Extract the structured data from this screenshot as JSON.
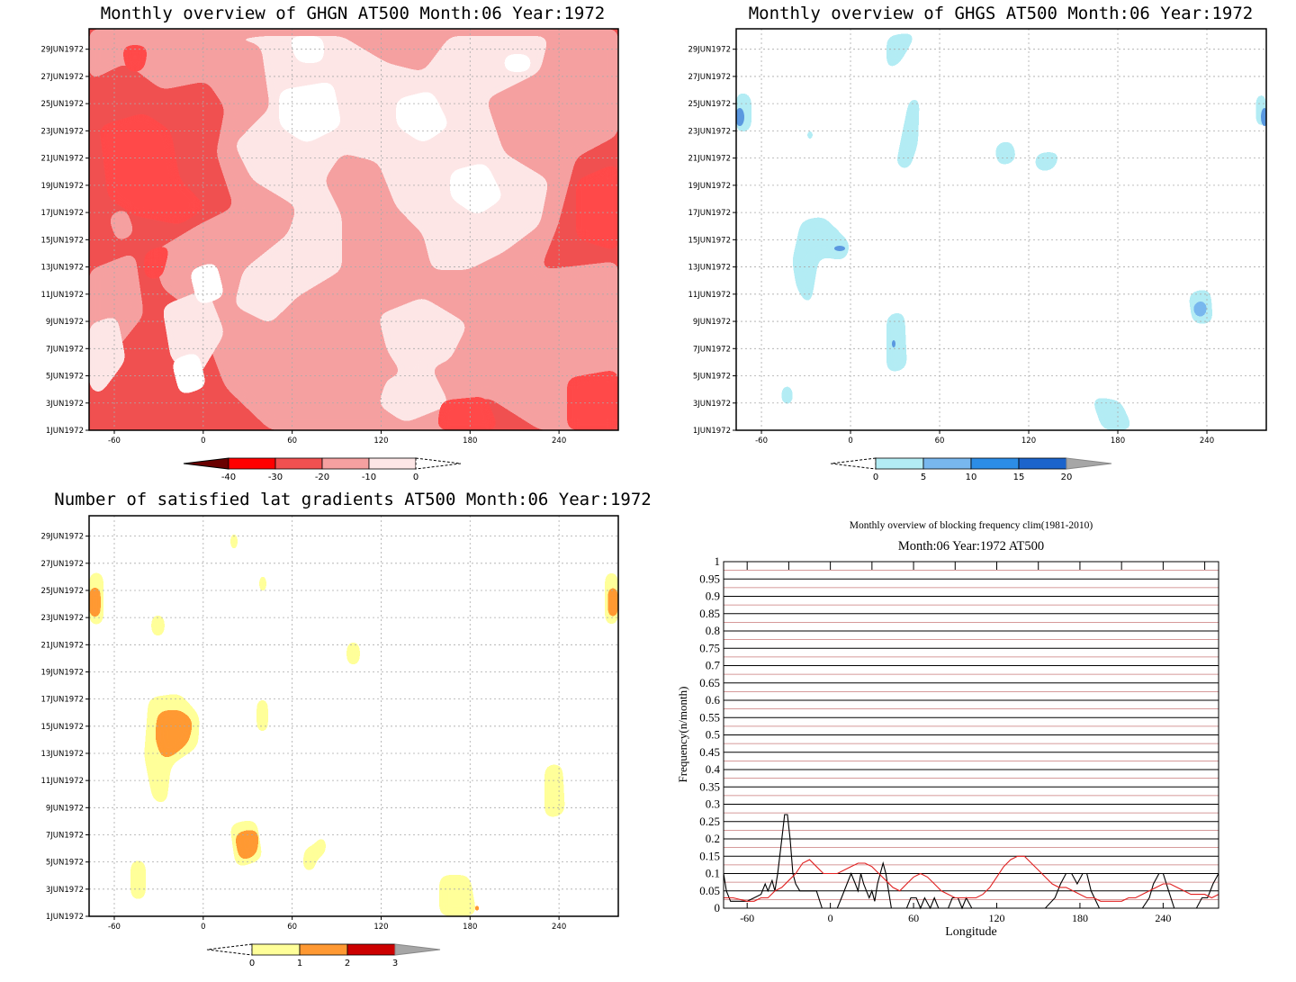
{
  "colors": {
    "ghgn_bins": [
      "#6a0000",
      "#ff0000",
      "#f05050",
      "#f5a0a0",
      "#fde6e6",
      "#ffffff"
    ],
    "ghgs_bins": [
      "#ffffff",
      "#b3ecf4",
      "#78b7ee",
      "#2c8de6",
      "#1c64cc",
      "#a6a6a6"
    ],
    "count_bins": [
      "#ffffff",
      "#ffff99",
      "#ff9933",
      "#cc0000",
      "#a6a6a6"
    ],
    "freq_black": "#000000",
    "freq_red": "#e02020"
  },
  "date_ticks": [
    "1JUN1972",
    "3JUN1972",
    "5JUN1972",
    "7JUN1972",
    "9JUN1972",
    "11JUN1972",
    "13JUN1972",
    "15JUN1972",
    "17JUN1972",
    "19JUN1972",
    "21JUN1972",
    "23JUN1972",
    "25JUN1972",
    "27JUN1972",
    "29JUN1972"
  ],
  "lon_ticks": [
    "-60",
    "0",
    "60",
    "120",
    "180",
    "240"
  ],
  "chart_data": [
    {
      "type": "heatmap",
      "title": "Monthly overview of GHGN AT500 Month:06 Year:1972",
      "x_label": "",
      "xlim": [
        -77,
        280
      ],
      "ylim": [
        "1JUN1972",
        "30JUN1972"
      ],
      "colorbar": {
        "ticks": [
          "-40",
          "-30",
          "-20",
          "-10",
          "0"
        ],
        "ends": "both"
      },
      "grid": true
    },
    {
      "type": "heatmap",
      "title": "Monthly overview of GHGS AT500 Month:06 Year:1972",
      "xlim": [
        -77,
        280
      ],
      "ylim": [
        "1JUN1972",
        "30JUN1972"
      ],
      "colorbar": {
        "ticks": [
          "0",
          "5",
          "10",
          "15",
          "20"
        ],
        "ends": "both"
      },
      "grid": true
    },
    {
      "type": "heatmap",
      "title": "Number of satisfied lat gradients AT500 Month:06 Year:1972",
      "xlim": [
        -77,
        280
      ],
      "ylim": [
        "1JUN1972",
        "30JUN1972"
      ],
      "colorbar": {
        "ticks": [
          "0",
          "1",
          "2",
          "3"
        ],
        "ends": "both"
      },
      "grid": true
    },
    {
      "type": "line",
      "title": "Monthly overview of blocking frequency clim(1981-2010)",
      "subtitle": "Month:06 Year:1972  AT500",
      "xlabel": "Longitude",
      "ylabel": "Frequency(n/month)",
      "xlim": [
        -77,
        280
      ],
      "ylim": [
        0,
        1
      ],
      "x_ticks": [
        "-60",
        "0",
        "60",
        "120",
        "180",
        "240"
      ],
      "y_ticks": [
        "0",
        "0.05",
        "0.1",
        "0.15",
        "0.2",
        "0.25",
        "0.3",
        "0.35",
        "0.4",
        "0.45",
        "0.5",
        "0.55",
        "0.6",
        "0.65",
        "0.7",
        "0.75",
        "0.8",
        "0.85",
        "0.9",
        "0.95",
        "1"
      ],
      "series": [
        {
          "color": "#000000",
          "x": [
            -77,
            -75,
            -72,
            -65,
            -60,
            -55,
            -50,
            -47,
            -45,
            -42,
            -40,
            -38,
            -35,
            -33,
            -31,
            -29,
            -27,
            -25,
            -22,
            -18,
            -14,
            -10,
            -6,
            -2,
            2,
            5,
            8,
            12,
            15,
            18,
            20,
            22,
            24,
            26,
            28,
            30,
            32,
            34,
            36,
            38,
            40,
            42,
            44,
            48,
            55,
            58,
            62,
            65,
            68,
            72,
            75,
            78,
            82,
            85,
            88,
            92,
            95,
            98,
            102,
            108,
            115,
            125,
            135,
            145,
            155,
            162,
            166,
            170,
            174,
            178,
            182,
            185,
            188,
            194,
            200,
            210,
            220,
            225,
            230,
            233,
            237,
            240,
            244,
            248,
            252,
            256,
            260,
            264,
            268,
            272,
            276,
            280
          ],
          "values": [
            0.1,
            0.05,
            0.02,
            0.02,
            0.02,
            0.03,
            0.04,
            0.07,
            0.05,
            0.08,
            0.05,
            0.1,
            0.2,
            0.27,
            0.27,
            0.2,
            0.1,
            0.07,
            0.05,
            0.05,
            0.05,
            0.05,
            0.0,
            0.0,
            0.0,
            0.0,
            0.03,
            0.07,
            0.1,
            0.07,
            0.05,
            0.1,
            0.07,
            0.05,
            0.03,
            0.05,
            0.02,
            0.07,
            0.1,
            0.13,
            0.1,
            0.05,
            0.0,
            0.0,
            0.0,
            0.03,
            0.03,
            0.0,
            0.03,
            0.0,
            0.03,
            0.0,
            0.0,
            0.0,
            0.03,
            0.03,
            0.0,
            0.03,
            0.0,
            0.0,
            0.0,
            0.0,
            0.0,
            0.0,
            0.0,
            0.03,
            0.07,
            0.1,
            0.1,
            0.07,
            0.1,
            0.1,
            0.05,
            0.0,
            0.0,
            0.0,
            0.0,
            0.0,
            0.03,
            0.07,
            0.1,
            0.1,
            0.05,
            0.0,
            0.0,
            0.0,
            0.0,
            0.0,
            0.03,
            0.03,
            0.07,
            0.1
          ]
        },
        {
          "color": "#e02020",
          "x": [
            -77,
            -70,
            -60,
            -55,
            -50,
            -45,
            -40,
            -35,
            -30,
            -25,
            -20,
            -15,
            -10,
            -5,
            0,
            5,
            10,
            15,
            20,
            25,
            30,
            35,
            40,
            45,
            50,
            55,
            60,
            65,
            70,
            75,
            80,
            85,
            90,
            95,
            100,
            105,
            110,
            115,
            120,
            125,
            130,
            135,
            140,
            145,
            150,
            155,
            160,
            165,
            170,
            175,
            180,
            185,
            190,
            195,
            200,
            205,
            210,
            215,
            220,
            225,
            230,
            235,
            240,
            245,
            250,
            255,
            260,
            265,
            270,
            275,
            280
          ],
          "values": [
            0.03,
            0.03,
            0.02,
            0.02,
            0.03,
            0.03,
            0.05,
            0.06,
            0.08,
            0.1,
            0.13,
            0.14,
            0.12,
            0.1,
            0.1,
            0.1,
            0.11,
            0.12,
            0.13,
            0.13,
            0.12,
            0.1,
            0.08,
            0.06,
            0.05,
            0.07,
            0.09,
            0.1,
            0.09,
            0.07,
            0.05,
            0.04,
            0.03,
            0.03,
            0.03,
            0.03,
            0.04,
            0.06,
            0.09,
            0.12,
            0.14,
            0.15,
            0.15,
            0.13,
            0.11,
            0.09,
            0.07,
            0.06,
            0.06,
            0.05,
            0.04,
            0.03,
            0.03,
            0.02,
            0.02,
            0.02,
            0.02,
            0.03,
            0.03,
            0.04,
            0.05,
            0.06,
            0.07,
            0.07,
            0.06,
            0.05,
            0.04,
            0.04,
            0.04,
            0.03,
            0.04
          ]
        }
      ]
    }
  ]
}
